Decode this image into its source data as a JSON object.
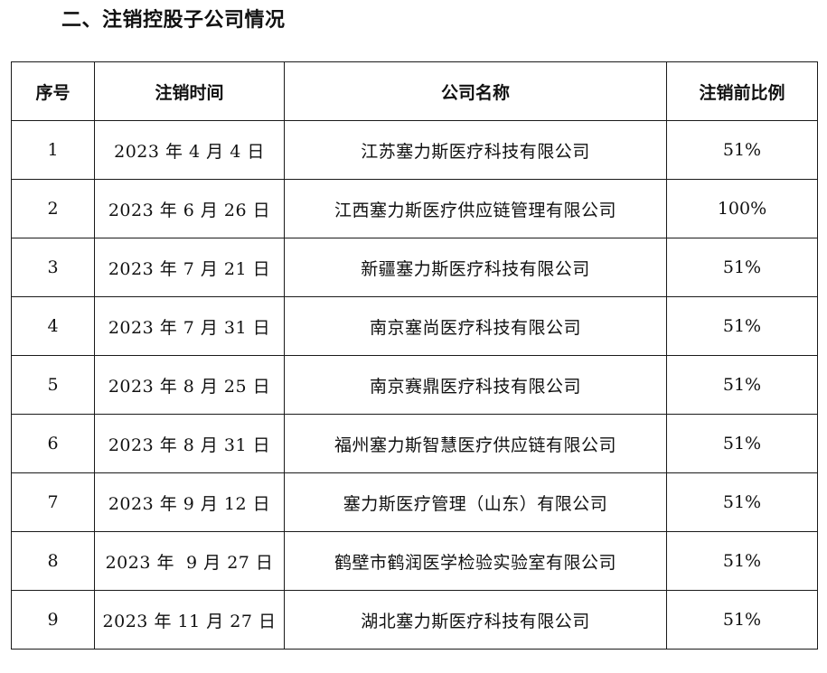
{
  "section": {
    "title": "二、注销控股子公司情况"
  },
  "table": {
    "headers": {
      "seq": "序号",
      "date": "注销时间",
      "name": "公司名称",
      "ratio": "注销前比例"
    },
    "rows": [
      {
        "seq": "1",
        "date": "2023 年 4 月 4 日",
        "name": "江苏塞力斯医疗科技有限公司",
        "ratio": "51%"
      },
      {
        "seq": "2",
        "date": "2023 年 6 月 26 日",
        "name": "江西塞力斯医疗供应链管理有限公司",
        "ratio": "100%"
      },
      {
        "seq": "3",
        "date": "2023 年 7 月 21 日",
        "name": "新疆塞力斯医疗科技有限公司",
        "ratio": "51%"
      },
      {
        "seq": "4",
        "date": "2023 年 7 月 31 日",
        "name": "南京塞尚医疗科技有限公司",
        "ratio": "51%"
      },
      {
        "seq": "5",
        "date": "2023 年 8 月 25 日",
        "name": "南京赛鼎医疗科技有限公司",
        "ratio": "51%"
      },
      {
        "seq": "6",
        "date": "2023 年 8 月 31 日",
        "name": "福州塞力斯智慧医疗供应链有限公司",
        "ratio": "51%"
      },
      {
        "seq": "7",
        "date": "2023 年 9 月 12 日",
        "name": "塞力斯医疗管理（山东）有限公司",
        "ratio": "51%"
      },
      {
        "seq": "8",
        "date": "2023 年  9 月 27 日",
        "name": "鹤壁市鹤润医学检验实验室有限公司",
        "ratio": "51%"
      },
      {
        "seq": "9",
        "date": "2023 年 11 月 27 日",
        "name": "湖北塞力斯医疗科技有限公司",
        "ratio": "51%"
      }
    ]
  }
}
